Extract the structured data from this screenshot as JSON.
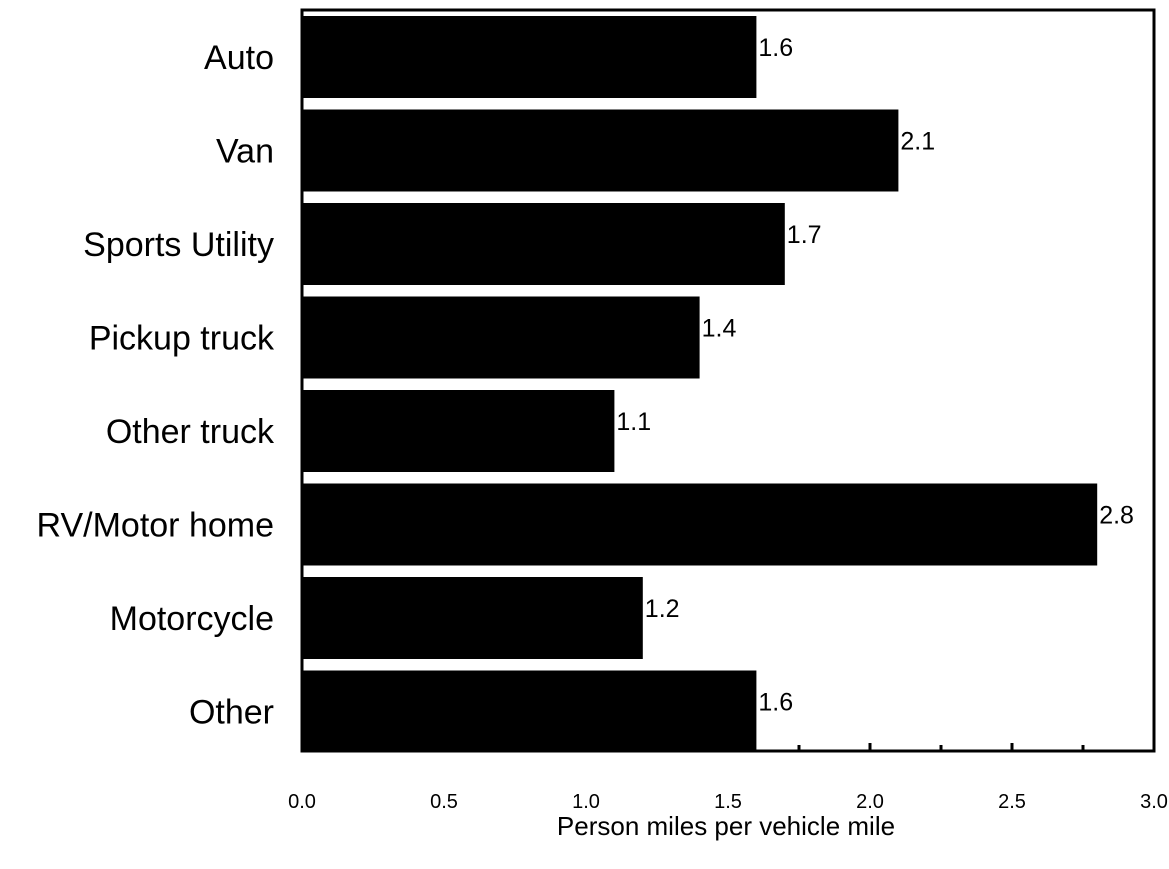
{
  "chart_data": {
    "type": "bar",
    "orientation": "horizontal",
    "categories": [
      "Auto",
      "Van",
      "Sports Utility",
      "Pickup truck",
      "Other truck",
      "RV/Motor home",
      "Motorcycle",
      "Other"
    ],
    "values": [
      1.6,
      2.1,
      1.7,
      1.4,
      1.1,
      2.8,
      1.2,
      1.6
    ],
    "value_labels": [
      "1.6",
      "2.1",
      "1.7",
      "1.4",
      "1.1",
      "2.8",
      "1.2",
      "1.6"
    ],
    "title": "",
    "xlabel": "Person miles per vehicle mile",
    "ylabel": "",
    "xlim": [
      0,
      3
    ],
    "x_ticks": [
      0,
      0.5,
      1,
      1.5,
      2,
      2.5,
      3
    ],
    "x_tick_labels": [
      "0.0",
      "0.5",
      "1.0",
      "1.5",
      "2.0",
      "2.5",
      "3.0"
    ],
    "grid": false,
    "legend": "none",
    "bar_color": "#000000"
  }
}
